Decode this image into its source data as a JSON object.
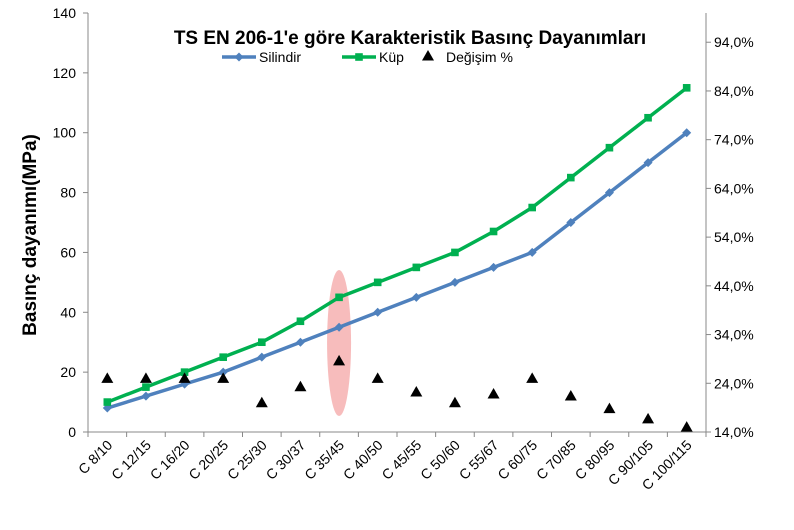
{
  "chart_data": {
    "type": "line",
    "title": "TS EN 206-1'e göre Karakteristik Basınç Dayanımları",
    "ylabel": "Basınç dayanımı(MPa)",
    "xlabel": "",
    "categories": [
      "C 8/10",
      "C 12/15",
      "C 16/20",
      "C 20/25",
      "C 25/30",
      "C 30/37",
      "C 35/45",
      "C 40/50",
      "C 45/55",
      "C 50/60",
      "C 55/67",
      "C 60/75",
      "C 70/85",
      "C 80/95",
      "C 90/105",
      "C 100/115"
    ],
    "ylim": [
      0,
      140
    ],
    "y_ticks": [
      "0",
      "20",
      "40",
      "60",
      "80",
      "100",
      "120",
      "140"
    ],
    "y2lim": [
      14,
      100
    ],
    "y2_ticks": [
      "14,0%",
      "24,0%",
      "34,0%",
      "44,0%",
      "54,0%",
      "64,0%",
      "74,0%",
      "84,0%",
      "94,0%"
    ],
    "series": [
      {
        "name": "Silindir",
        "axis": "left",
        "marker": "diamond",
        "color": "#4F81BD",
        "values": [
          8,
          12,
          16,
          20,
          25,
          30,
          35,
          40,
          45,
          50,
          55,
          60,
          70,
          80,
          90,
          100
        ]
      },
      {
        "name": "Küp",
        "axis": "left",
        "marker": "square",
        "color": "#00B050",
        "values": [
          10,
          15,
          20,
          25,
          30,
          37,
          45,
          50,
          55,
          60,
          67,
          75,
          85,
          95,
          105,
          115
        ]
      },
      {
        "name": "Değişim %",
        "axis": "right",
        "marker": "triangle",
        "color": "#000000",
        "values": [
          25.0,
          25.0,
          25.0,
          25.0,
          20.0,
          23.3,
          28.6,
          25.0,
          22.2,
          20.0,
          21.8,
          25.0,
          21.4,
          18.8,
          16.7,
          15.0
        ]
      }
    ],
    "highlight": {
      "category": "C 35/45",
      "color": "#F4A6A6"
    },
    "grid": false,
    "legend": "top"
  }
}
